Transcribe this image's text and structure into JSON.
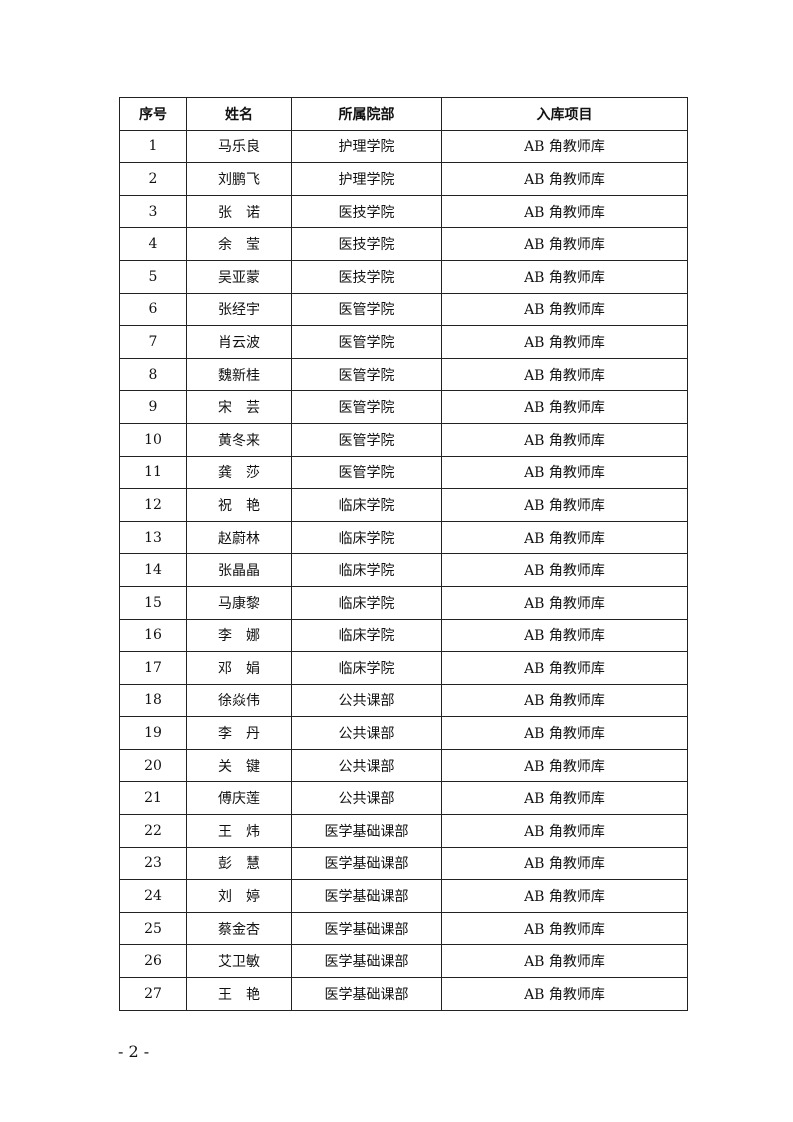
{
  "headers": [
    "序号",
    "姓名",
    "所属院部",
    "入库项目"
  ],
  "rows": [
    [
      "1",
      "马乐良",
      "护理学院",
      "AB 角教师库"
    ],
    [
      "2",
      "刘鹏飞",
      "护理学院",
      "AB 角教师库"
    ],
    [
      "3",
      "张　诺",
      "医技学院",
      "AB 角教师库"
    ],
    [
      "4",
      "余　莹",
      "医技学院",
      "AB 角教师库"
    ],
    [
      "5",
      "吴亚蒙",
      "医技学院",
      "AB 角教师库"
    ],
    [
      "6",
      "张经宇",
      "医管学院",
      "AB 角教师库"
    ],
    [
      "7",
      "肖云波",
      "医管学院",
      "AB 角教师库"
    ],
    [
      "8",
      "魏新桂",
      "医管学院",
      "AB 角教师库"
    ],
    [
      "9",
      "宋　芸",
      "医管学院",
      "AB 角教师库"
    ],
    [
      "10",
      "黄冬来",
      "医管学院",
      "AB 角教师库"
    ],
    [
      "11",
      "龚　莎",
      "医管学院",
      "AB 角教师库"
    ],
    [
      "12",
      "祝　艳",
      "临床学院",
      "AB 角教师库"
    ],
    [
      "13",
      "赵蔚林",
      "临床学院",
      "AB 角教师库"
    ],
    [
      "14",
      "张晶晶",
      "临床学院",
      "AB 角教师库"
    ],
    [
      "15",
      "马康黎",
      "临床学院",
      "AB 角教师库"
    ],
    [
      "16",
      "李　娜",
      "临床学院",
      "AB 角教师库"
    ],
    [
      "17",
      "邓　娟",
      "临床学院",
      "AB 角教师库"
    ],
    [
      "18",
      "徐焱伟",
      "公共课部",
      "AB 角教师库"
    ],
    [
      "19",
      "李　丹",
      "公共课部",
      "AB 角教师库"
    ],
    [
      "20",
      "关　键",
      "公共课部",
      "AB 角教师库"
    ],
    [
      "21",
      "傅庆莲",
      "公共课部",
      "AB 角教师库"
    ],
    [
      "22",
      "王　炜",
      "医学基础课部",
      "AB 角教师库"
    ],
    [
      "23",
      "彭　慧",
      "医学基础课部",
      "AB 角教师库"
    ],
    [
      "24",
      "刘　婷",
      "医学基础课部",
      "AB 角教师库"
    ],
    [
      "25",
      "蔡金杏",
      "医学基础课部",
      "AB 角教师库"
    ],
    [
      "26",
      "艾卫敏",
      "医学基础课部",
      "AB 角教师库"
    ],
    [
      "27",
      "王　艳",
      "医学基础课部",
      "AB 角教师库"
    ]
  ],
  "footer": "- 2 -"
}
